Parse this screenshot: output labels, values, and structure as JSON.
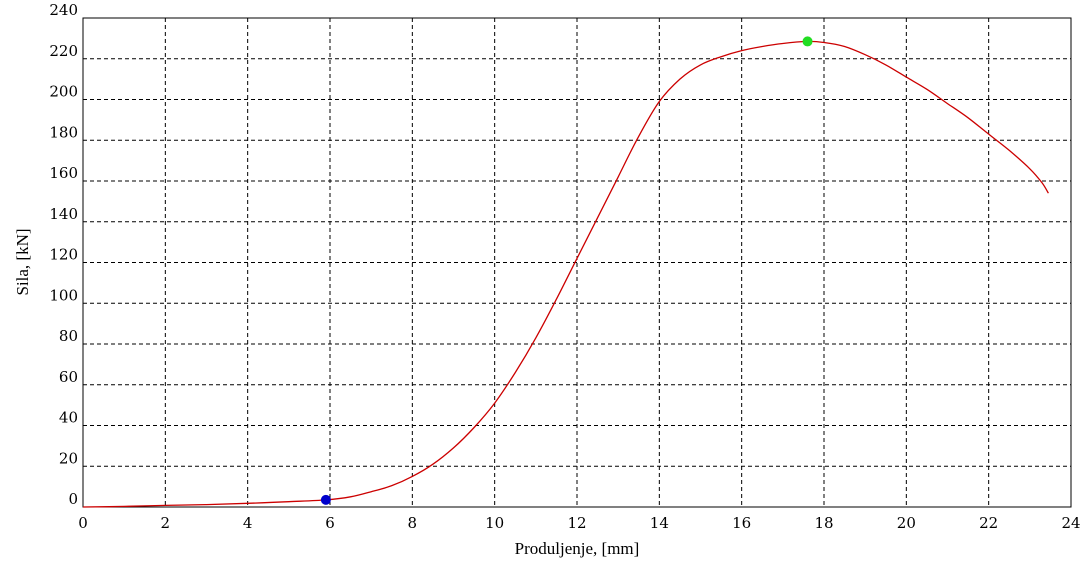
{
  "chart_data": {
    "type": "line",
    "xlabel": "Produljenje, [mm]",
    "ylabel": "Sila, [kN]",
    "xlim": [
      0,
      24
    ],
    "ylim": [
      0,
      240
    ],
    "xticks": [
      0,
      2,
      4,
      6,
      8,
      10,
      12,
      14,
      16,
      18,
      20,
      22,
      24
    ],
    "yticks": [
      0,
      20,
      40,
      60,
      80,
      100,
      120,
      140,
      160,
      180,
      200,
      220,
      240
    ],
    "grid": true,
    "series": [
      {
        "color": "#cc0000",
        "x": [
          0,
          1,
          2,
          3,
          4,
          5,
          5.9,
          6.5,
          7,
          7.5,
          8,
          8.5,
          9,
          9.5,
          10,
          10.5,
          11,
          11.5,
          12,
          12.5,
          13,
          13.5,
          14,
          14.5,
          15,
          15.5,
          16,
          16.5,
          17,
          17.6,
          18,
          18.5,
          19,
          19.5,
          20,
          20.5,
          21,
          21.5,
          22,
          22.5,
          23,
          23.3,
          23.45
        ],
        "y": [
          0,
          0.3,
          0.8,
          1.2,
          1.8,
          2.6,
          3.5,
          5,
          7.5,
          10.5,
          15,
          21,
          29,
          39,
          51,
          66,
          83,
          102,
          122,
          142,
          162,
          182,
          199,
          210,
          217,
          221,
          224,
          226,
          227.5,
          228.5,
          228,
          226,
          222,
          217,
          211,
          205,
          198,
          191,
          183,
          175,
          166,
          159,
          154
        ]
      }
    ],
    "markers": [
      {
        "x": 5.9,
        "y": 3.5,
        "color": "#0000cc"
      },
      {
        "x": 17.6,
        "y": 228.5,
        "color": "#22dd22"
      }
    ]
  }
}
